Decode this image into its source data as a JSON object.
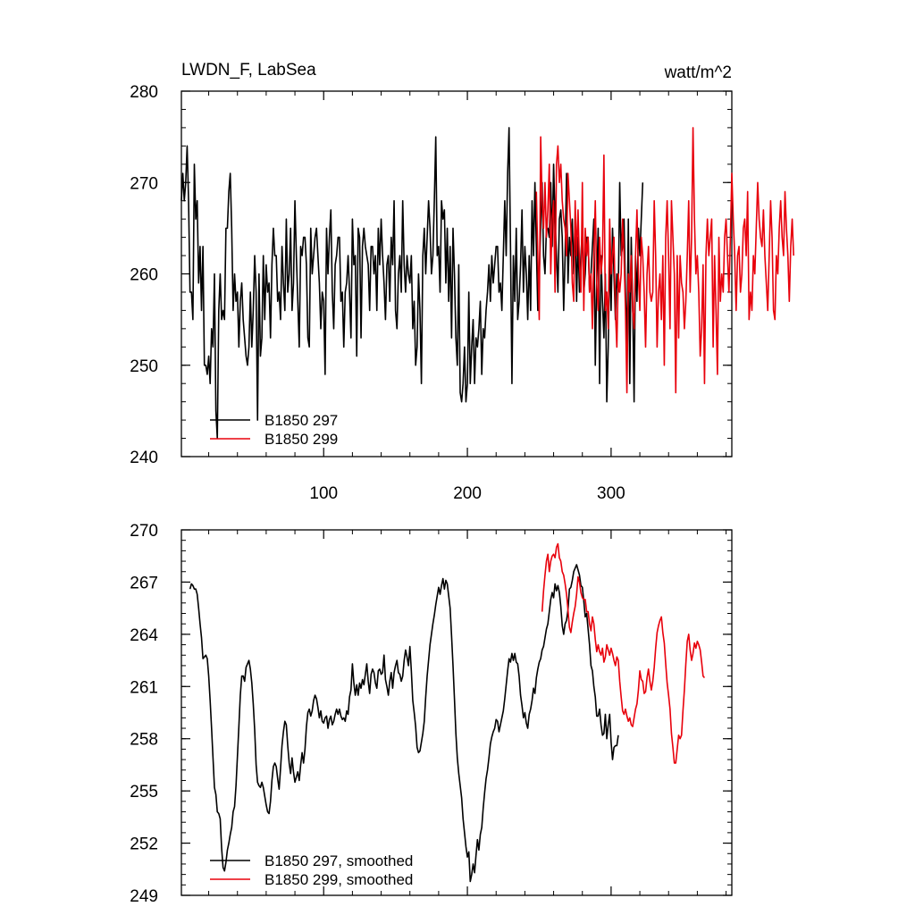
{
  "chart_data": [
    {
      "type": "line",
      "title": "LWDN_F, LabSea",
      "units": "watt/m^2",
      "xlim": [
        1,
        384
      ],
      "ylim": [
        240,
        280
      ],
      "yticks": [
        240,
        250,
        260,
        270,
        280
      ],
      "xticks": [
        100,
        200,
        300
      ],
      "grid": false,
      "legend_position": "bottom-left",
      "series": [
        {
          "name": "B1850 297",
          "color": "#000000",
          "x_start": 1,
          "values": [
            268,
            271,
            268,
            270,
            274,
            268,
            258,
            258,
            255,
            272,
            266,
            268,
            259,
            263,
            256,
            263,
            250,
            250,
            249,
            251,
            248,
            254,
            252,
            260,
            245,
            242,
            256,
            260,
            255,
            256,
            255,
            265,
            265,
            269,
            271,
            265,
            256,
            260,
            257,
            258,
            252,
            257,
            259,
            255,
            253,
            251,
            250,
            252,
            258,
            252,
            256,
            262,
            258,
            244,
            260,
            251,
            253,
            262,
            255,
            261,
            258,
            259,
            253,
            261,
            265,
            262,
            262,
            257,
            258,
            255,
            263,
            259,
            256,
            266,
            258,
            260,
            265,
            256,
            259,
            268,
            262,
            257,
            252,
            263,
            262,
            264,
            264,
            261,
            253,
            252,
            265,
            260,
            262,
            264,
            265,
            262,
            259,
            254,
            258,
            257,
            249,
            265,
            260,
            264,
            267,
            258,
            254,
            261,
            262,
            264,
            264,
            257,
            258,
            252,
            258,
            259,
            262,
            258,
            253,
            266,
            261,
            262,
            251,
            265,
            264,
            253,
            263,
            265,
            263,
            262,
            261,
            256,
            263,
            263,
            260,
            262,
            256,
            265,
            261,
            266,
            262,
            259,
            255,
            261,
            262,
            257,
            264,
            261,
            268,
            256,
            254,
            260,
            262,
            258,
            268,
            261,
            258,
            262,
            260,
            259,
            262,
            254,
            257,
            250,
            252,
            260,
            256,
            248,
            262,
            265,
            260,
            264,
            268,
            265,
            260,
            262,
            268,
            275,
            262,
            263,
            258,
            268,
            266,
            267,
            259,
            265,
            257,
            263,
            253,
            265,
            260,
            253,
            250,
            261,
            247,
            246,
            248,
            252,
            246,
            248,
            258,
            248,
            252,
            255,
            248,
            253,
            252,
            254,
            257,
            249,
            254,
            253,
            256,
            258,
            261,
            257,
            262,
            259,
            261,
            263,
            263,
            258,
            259,
            256,
            262,
            268,
            262,
            271,
            276,
            263,
            248,
            262,
            257,
            265,
            255,
            257,
            261,
            267,
            258,
            263,
            260,
            255,
            262,
            256,
            268,
            262,
            270,
            263,
            256,
            260,
            265,
            270,
            262,
            260,
            265,
            265,
            264,
            270,
            263,
            272,
            266,
            262,
            258,
            266,
            267,
            264,
            256,
            262,
            271,
            259,
            264,
            262,
            266,
            260,
            266,
            257,
            264,
            258,
            262,
            265,
            258,
            260,
            264,
            264,
            258,
            260,
            263,
            266,
            250,
            259,
            265,
            248,
            262,
            257,
            253,
            260,
            246,
            252,
            262,
            256,
            265,
            260,
            255,
            260,
            258,
            270,
            262,
            263,
            266,
            258,
            252,
            266,
            248,
            264,
            257,
            246,
            262,
            257,
            265,
            262,
            266,
            270
          ]
        },
        {
          "name": "B1850 299",
          "color": "#e8000b",
          "x_start": 248,
          "values": [
            269,
            262,
            255,
            275,
            268,
            265,
            270,
            264,
            267,
            272,
            260,
            266,
            268,
            258,
            272,
            274,
            270,
            272,
            268,
            266,
            265,
            262,
            271,
            268,
            265,
            259,
            257,
            268,
            262,
            267,
            261,
            258,
            270,
            256,
            265,
            262,
            264,
            258,
            260,
            254,
            262,
            268,
            259,
            256,
            264,
            260,
            262,
            273,
            256,
            258,
            254,
            266,
            260,
            262,
            264,
            256,
            252,
            260,
            258,
            260,
            266,
            262,
            256,
            247,
            260,
            258,
            262,
            256,
            254,
            262,
            267,
            260,
            256,
            264,
            262,
            258,
            252,
            260,
            263,
            258,
            257,
            258,
            268,
            262,
            252,
            258,
            260,
            255,
            262,
            250,
            264,
            268,
            262,
            254,
            268,
            264,
            260,
            247,
            262,
            253,
            262,
            259,
            258,
            254,
            257,
            262,
            268,
            258,
            264,
            276,
            266,
            260,
            262,
            258,
            251,
            254,
            261,
            248,
            262,
            266,
            262,
            264,
            266,
            252,
            262,
            256,
            249,
            264,
            257,
            260,
            258,
            264,
            266,
            262,
            258,
            264,
            271,
            266,
            262,
            256,
            262,
            263,
            258,
            260,
            265,
            266,
            262,
            269,
            255,
            258,
            256,
            262,
            260,
            265,
            270,
            266,
            264,
            263,
            267,
            262,
            259,
            256,
            262,
            268,
            264,
            256,
            255,
            262,
            260,
            265,
            268,
            264,
            262,
            269,
            265,
            262,
            257,
            263,
            266,
            262
          ]
        }
      ]
    },
    {
      "type": "line",
      "title": "",
      "xlim": [
        1,
        384
      ],
      "ylim": [
        249,
        270
      ],
      "yticks": [
        249,
        252,
        255,
        258,
        261,
        264,
        267,
        270
      ],
      "grid": false,
      "legend_position": "bottom-left",
      "series": [
        {
          "name": "B1850 297, smoothed",
          "color": "#000000",
          "x_start": 7,
          "values": [
            266.6,
            266.9,
            266.8,
            266.6,
            266.6,
            266.3,
            265.5,
            264.6,
            263.8,
            262.6,
            262.7,
            262.8,
            262.6,
            261.6,
            260.2,
            258.6,
            256.9,
            255.2,
            254.8,
            253.8,
            253.7,
            253.4,
            251.7,
            250.6,
            250.4,
            250.9,
            251.6,
            252.0,
            252.5,
            252.9,
            253.8,
            254.1,
            255.3,
            257.0,
            258.7,
            260.5,
            261.6,
            261.6,
            261.3,
            262.1,
            262.3,
            262.5,
            262.0,
            261.2,
            260.0,
            258.5,
            256.5,
            255.5,
            255.3,
            255.2,
            255.5,
            255.2,
            254.7,
            254.2,
            253.8,
            253.7,
            254.4,
            255.6,
            256.4,
            256.6,
            256.4,
            255.7,
            255.1,
            256.3,
            257.6,
            258.4,
            259.0,
            258.8,
            257.6,
            256.6,
            256.0,
            256.9,
            256.1,
            255.5,
            255.8,
            256.1,
            255.6,
            256.5,
            257.2,
            256.6,
            257.4,
            258.7,
            259.5,
            259.7,
            259.3,
            259.6,
            260.2,
            260.5,
            260.3,
            259.8,
            259.2,
            259.6,
            259.0,
            258.9,
            259.2,
            259.3,
            258.6,
            259.1,
            259.3,
            258.8,
            259.0,
            259.4,
            259.7,
            259.4,
            259.7,
            259.3,
            259.1,
            259.2,
            259.0,
            259.6,
            259.4,
            260.4,
            260.8,
            262.3,
            261.2,
            260.5,
            261.1,
            260.5,
            261.2,
            260.9,
            261.4,
            261.1,
            261.7,
            262.3,
            261.3,
            260.6,
            261.7,
            262.0,
            261.8,
            261.2,
            260.9,
            261.9,
            262.0,
            261.7,
            261.8,
            262.8,
            261.4,
            261.0,
            260.5,
            261.3,
            261.8,
            260.9,
            261.8,
            262.2,
            262.5,
            261.8,
            261.7,
            261.3,
            261.6,
            262.5,
            263.1,
            262.7,
            262.2,
            263.3,
            261.9,
            260.2,
            259.5,
            258.7,
            257.5,
            257.2,
            257.3,
            257.8,
            258.3,
            259.0,
            260.4,
            261.6,
            262.5,
            263.4,
            264.0,
            264.6,
            265.1,
            265.7,
            266.2,
            266.7,
            266.3,
            266.8,
            267.2,
            266.6,
            267.1,
            266.9,
            266.2,
            265.5,
            263.9,
            262.2,
            260.3,
            258.3,
            256.9,
            256.0,
            255.3,
            254.6,
            253.4,
            252.6,
            251.8,
            251.2,
            251.5,
            249.8,
            250.2,
            250.8,
            250.3,
            251.3,
            252.2,
            251.6,
            252.5,
            252.9,
            254.0,
            254.9,
            255.7,
            256.2,
            256.9,
            257.7,
            258.1,
            258.4,
            258.6,
            259.1,
            259.0,
            258.4,
            258.8,
            259.2,
            259.6,
            260.3,
            261.1,
            261.9,
            262.6,
            262.4,
            262.9,
            262.5,
            262.9,
            262.4,
            262.3,
            261.6,
            260.5,
            259.9,
            259.2,
            259.5,
            258.9,
            258.6,
            259.4,
            259.7,
            260.2,
            260.9,
            260.6,
            261.5,
            262.0,
            262.4,
            262.6,
            263.1,
            263.3,
            263.8,
            264.3,
            264.6,
            265.3,
            266.0,
            266.4,
            266.1,
            266.9,
            266.5,
            266.8,
            266.4,
            265.6,
            264.5,
            264.0,
            264.6,
            264.8,
            265.4,
            266.6,
            266.7,
            267.1,
            267.6,
            267.8,
            268.0,
            267.7,
            267.4,
            266.8,
            266.7,
            265.9,
            265.0,
            265.2,
            264.3,
            263.4,
            262.2,
            261.9,
            261.0,
            260.4,
            259.3,
            259.3,
            259.7,
            258.8,
            258.2,
            258.3,
            259.4,
            258.0,
            258.8,
            259.4,
            257.8,
            256.8,
            257.5,
            257.6,
            257.6,
            258.2
          ]
        },
        {
          "name": "B1850 299, smoothed",
          "color": "#e8000b",
          "x_start": 252,
          "values": [
            265.3,
            266.5,
            267.4,
            268.2,
            268.6,
            267.6,
            268.2,
            268.5,
            268.6,
            268.4,
            269.0,
            269.2,
            268.4,
            268.2,
            267.6,
            267.4,
            266.9,
            266.3,
            265.4,
            264.4,
            264.1,
            264.7,
            265.2,
            265.6,
            266.3,
            267.3,
            267.0,
            266.4,
            266.1,
            266.0,
            266.0,
            265.3,
            265.3,
            264.6,
            264.2,
            265.0,
            264.6,
            263.7,
            263.0,
            263.4,
            263.0,
            262.8,
            263.2,
            262.4,
            262.7,
            263.4,
            263.1,
            262.8,
            263.2,
            262.9,
            262.5,
            262.2,
            262.7,
            262.5,
            261.3,
            260.4,
            259.6,
            259.4,
            259.7,
            259.3,
            259.0,
            259.2,
            258.8,
            258.7,
            259.2,
            259.7,
            260.0,
            260.8,
            261.9,
            261.4,
            261.3,
            260.6,
            260.7,
            261.5,
            262.0,
            261.3,
            260.8,
            261.3,
            262.1,
            263.2,
            264.1,
            264.5,
            264.8,
            265.0,
            264.1,
            263.5,
            262.3,
            261.2,
            260.5,
            259.7,
            258.3,
            257.5,
            256.6,
            256.6,
            257.4,
            258.2,
            258.0,
            258.2,
            259.6,
            260.8,
            262.3,
            263.6,
            264.0,
            263.1,
            262.5,
            262.9,
            263.5,
            263.2,
            263.6,
            263.4,
            263.1,
            262.4,
            261.6,
            261.5
          ]
        }
      ]
    }
  ],
  "legends": {
    "top": [
      "B1850 297",
      "B1850 299"
    ],
    "bottom": [
      "B1850 297, smoothed",
      "B1850 299, smoothed"
    ]
  }
}
